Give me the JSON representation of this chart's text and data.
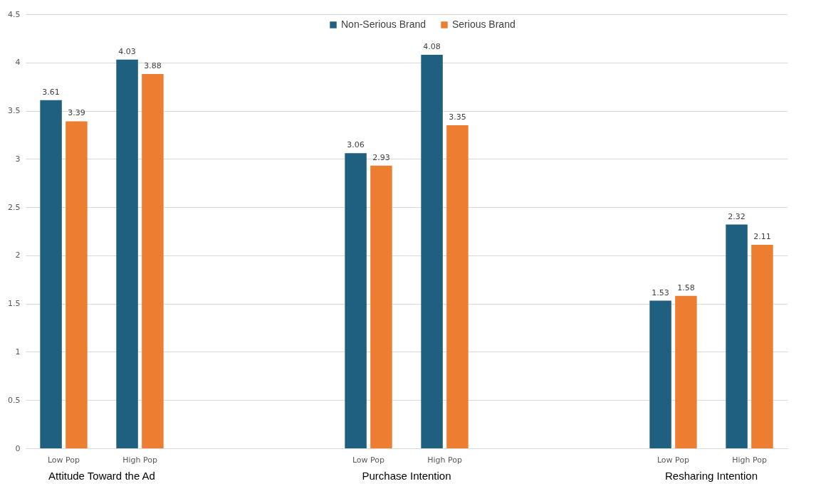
{
  "chart_data": {
    "type": "bar",
    "categories": [
      "Low Pop",
      "High Pop",
      null,
      null,
      "Low Pop",
      "High Pop",
      null,
      null,
      "Low Pop",
      "High Pop"
    ],
    "series": [
      {
        "name": "Non-Serious Brand",
        "color": "#1f5f7f",
        "values": [
          3.61,
          4.03,
          null,
          null,
          3.06,
          4.08,
          null,
          null,
          1.53,
          2.32
        ]
      },
      {
        "name": "Serious Brand",
        "color": "#ed7d31",
        "values": [
          3.39,
          3.88,
          null,
          null,
          2.93,
          3.35,
          null,
          null,
          1.58,
          2.11
        ]
      }
    ],
    "annotations": [
      "Attitude Toward the Ad",
      "Purchase Intention",
      "Resharing Intention"
    ],
    "ylim": [
      0,
      4.5
    ],
    "yticks": [
      0,
      0.5,
      1,
      1.5,
      2,
      2.5,
      3,
      3.5,
      4,
      4.5
    ],
    "grid": "y",
    "legend": "top",
    "data_labels": true
  }
}
